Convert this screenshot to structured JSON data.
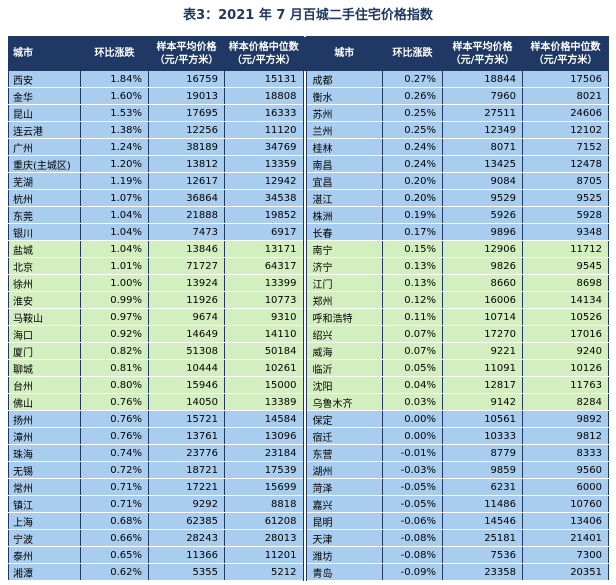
{
  "title": "表3：2021 年 7 月百城二手住宅价格指数",
  "table": {
    "header": [
      "城市",
      "环比涨跌",
      "样本平均价格\n（元/平方米）",
      "样本价格中位数\n（元/平方米）",
      "城市",
      "环比涨跌",
      "样本平均价格\n（元/平方米）",
      "样本价格中位数\n（元/平方米）"
    ],
    "sections": [
      {
        "color": "#a9cdee",
        "rows": [
          [
            "西安",
            "1.84%",
            "16759",
            "15131",
            "成都",
            "0.27%",
            "18844",
            "17506"
          ],
          [
            "金华",
            "1.60%",
            "19013",
            "18808",
            "衡水",
            "0.26%",
            "7960",
            "8021"
          ],
          [
            "昆山",
            "1.53%",
            "17695",
            "16333",
            "苏州",
            "0.25%",
            "27511",
            "24606"
          ],
          [
            "连云港",
            "1.38%",
            "12256",
            "11120",
            "兰州",
            "0.25%",
            "12349",
            "12102"
          ],
          [
            "广州",
            "1.24%",
            "38189",
            "34769",
            "桂林",
            "0.24%",
            "8071",
            "7152"
          ],
          [
            "重庆(主城区)",
            "1.20%",
            "13812",
            "13359",
            "南昌",
            "0.24%",
            "13425",
            "12478"
          ],
          [
            "芜湖",
            "1.19%",
            "12617",
            "12942",
            "宜昌",
            "0.20%",
            "9084",
            "8705"
          ],
          [
            "杭州",
            "1.07%",
            "36864",
            "34538",
            "湛江",
            "0.20%",
            "9529",
            "9525"
          ],
          [
            "东莞",
            "1.04%",
            "21888",
            "19852",
            "株洲",
            "0.19%",
            "5926",
            "5928"
          ],
          [
            "银川",
            "1.04%",
            "7473",
            "6917",
            "长春",
            "0.17%",
            "9896",
            "9348"
          ]
        ]
      },
      {
        "color": "#d3efc0",
        "rows": [
          [
            "盐城",
            "1.04%",
            "13846",
            "13171",
            "南宁",
            "0.15%",
            "12906",
            "11712"
          ],
          [
            "北京",
            "1.01%",
            "71727",
            "64317",
            "济宁",
            "0.13%",
            "9826",
            "9545"
          ],
          [
            "徐州",
            "1.00%",
            "13924",
            "13399",
            "江门",
            "0.13%",
            "8660",
            "8698"
          ],
          [
            "淮安",
            "0.99%",
            "11926",
            "10773",
            "郑州",
            "0.12%",
            "16006",
            "14134"
          ],
          [
            "马鞍山",
            "0.97%",
            "9674",
            "9310",
            "呼和浩特",
            "0.11%",
            "10714",
            "10526"
          ],
          [
            "海口",
            "0.92%",
            "14649",
            "14110",
            "绍兴",
            "0.07%",
            "17270",
            "17016"
          ],
          [
            "厦门",
            "0.82%",
            "51308",
            "50184",
            "威海",
            "0.07%",
            "9221",
            "9240"
          ],
          [
            "聊城",
            "0.81%",
            "10444",
            "10261",
            "临沂",
            "0.05%",
            "11091",
            "10126"
          ],
          [
            "台州",
            "0.80%",
            "15946",
            "15000",
            "沈阳",
            "0.04%",
            "12817",
            "11763"
          ],
          [
            "佛山",
            "0.76%",
            "14050",
            "13389",
            "乌鲁木齐",
            "0.03%",
            "9142",
            "8284"
          ]
        ]
      },
      {
        "color": "#a9cdee",
        "rows": [
          [
            "扬州",
            "0.76%",
            "15721",
            "14584",
            "保定",
            "0.00%",
            "10561",
            "9892"
          ],
          [
            "漳州",
            "0.76%",
            "13761",
            "13096",
            "宿迁",
            "0.00%",
            "10333",
            "9812"
          ],
          [
            "珠海",
            "0.74%",
            "23776",
            "23184",
            "东营",
            "-0.01%",
            "8779",
            "8333"
          ],
          [
            "无锡",
            "0.72%",
            "18721",
            "17539",
            "湖州",
            "-0.03%",
            "9859",
            "9560"
          ],
          [
            "常州",
            "0.71%",
            "17221",
            "15699",
            "菏泽",
            "-0.05%",
            "6231",
            "6000"
          ],
          [
            "镇江",
            "0.71%",
            "9292",
            "8818",
            "嘉兴",
            "-0.05%",
            "11486",
            "10760"
          ],
          [
            "上海",
            "0.68%",
            "62385",
            "61208",
            "昆明",
            "-0.06%",
            "14546",
            "13406"
          ],
          [
            "宁波",
            "0.66%",
            "28243",
            "28013",
            "天津",
            "-0.08%",
            "25181",
            "21401"
          ],
          [
            "泰州",
            "0.65%",
            "11366",
            "11201",
            "潍坊",
            "-0.08%",
            "7536",
            "7300"
          ],
          [
            "湘潭",
            "0.62%",
            "5355",
            "5212",
            "青岛",
            "-0.09%",
            "23358",
            "20351"
          ]
        ]
      }
    ]
  }
}
